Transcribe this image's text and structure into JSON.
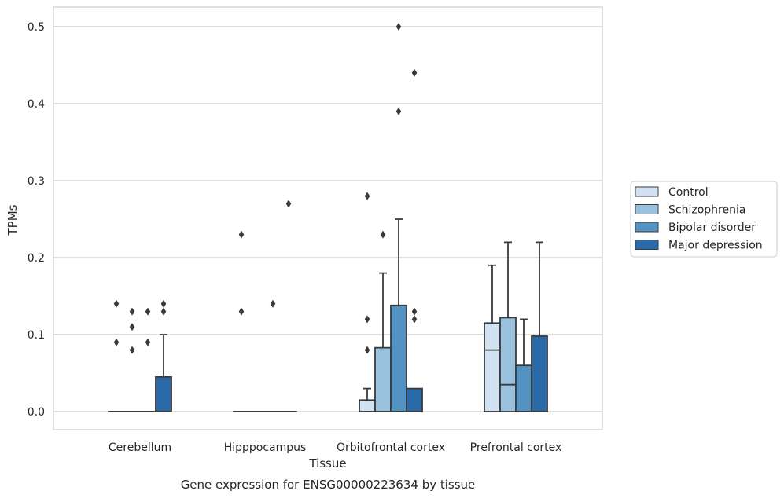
{
  "chart_data": {
    "type": "boxplot",
    "caption": "Gene expression for ENSG00000223634 by tissue",
    "xlabel": "Tissue",
    "ylabel": "TPMs",
    "ylim": [
      -0.025,
      0.525
    ],
    "yticks": [
      "0.0",
      "0.1",
      "0.2",
      "0.3",
      "0.4",
      "0.5"
    ],
    "grid": "horizontal",
    "legend_position": "right",
    "categories": [
      "Cerebellum",
      "Hipppocampus",
      "Orbitofrontal cortex",
      "Prefrontal cortex"
    ],
    "series": [
      {
        "name": "Control",
        "color": "#d1e2f2",
        "boxes": [
          {
            "q1": 0,
            "median": 0,
            "q3": 0,
            "whisker_low": 0,
            "whisker_high": 0,
            "outliers": [
              0.14,
              0.09
            ]
          },
          {
            "q1": 0,
            "median": 0,
            "q3": 0,
            "whisker_low": 0,
            "whisker_high": 0,
            "outliers": [
              0.23,
              0.13
            ]
          },
          {
            "q1": 0,
            "median": 0,
            "q3": 0.015,
            "whisker_low": 0,
            "whisker_high": 0.03,
            "outliers": [
              0.28,
              0.12,
              0.08
            ]
          },
          {
            "q1": 0,
            "median": 0.08,
            "q3": 0.115,
            "whisker_low": 0,
            "whisker_high": 0.19,
            "outliers": []
          }
        ]
      },
      {
        "name": "Schizophrenia",
        "color": "#9ac2de",
        "boxes": [
          {
            "q1": 0,
            "median": 0,
            "q3": 0,
            "whisker_low": 0,
            "whisker_high": 0,
            "outliers": [
              0.13,
              0.11,
              0.08
            ]
          },
          {
            "q1": 0,
            "median": 0,
            "q3": 0,
            "whisker_low": 0,
            "whisker_high": 0,
            "outliers": []
          },
          {
            "q1": 0,
            "median": 0,
            "q3": 0.083,
            "whisker_low": 0,
            "whisker_high": 0.18,
            "outliers": [
              0.23
            ]
          },
          {
            "q1": 0,
            "median": 0.035,
            "q3": 0.122,
            "whisker_low": 0,
            "whisker_high": 0.22,
            "outliers": []
          }
        ]
      },
      {
        "name": "Bipolar disorder",
        "color": "#5393c3",
        "boxes": [
          {
            "q1": 0,
            "median": 0,
            "q3": 0,
            "whisker_low": 0,
            "whisker_high": 0,
            "outliers": [
              0.13,
              0.09
            ]
          },
          {
            "q1": 0,
            "median": 0,
            "q3": 0,
            "whisker_low": 0,
            "whisker_high": 0,
            "outliers": [
              0.14
            ]
          },
          {
            "q1": 0,
            "median": 0,
            "q3": 0.138,
            "whisker_low": 0,
            "whisker_high": 0.25,
            "outliers": [
              0.5,
              0.39
            ]
          },
          {
            "q1": 0,
            "median": 0,
            "q3": 0.06,
            "whisker_low": 0,
            "whisker_high": 0.12,
            "outliers": []
          }
        ]
      },
      {
        "name": "Major depression",
        "color": "#2b6aa8",
        "boxes": [
          {
            "q1": 0,
            "median": 0,
            "q3": 0.045,
            "whisker_low": 0,
            "whisker_high": 0.1,
            "outliers": [
              0.14,
              0.13
            ]
          },
          {
            "q1": 0,
            "median": 0,
            "q3": 0,
            "whisker_low": 0,
            "whisker_high": 0,
            "outliers": [
              0.27
            ]
          },
          {
            "q1": 0,
            "median": 0,
            "q3": 0.03,
            "whisker_low": 0,
            "whisker_high": 0.03,
            "outliers": [
              0.44,
              0.13,
              0.12
            ]
          },
          {
            "q1": 0,
            "median": 0,
            "q3": 0.098,
            "whisker_low": 0,
            "whisker_high": 0.22,
            "outliers": []
          }
        ]
      }
    ]
  }
}
